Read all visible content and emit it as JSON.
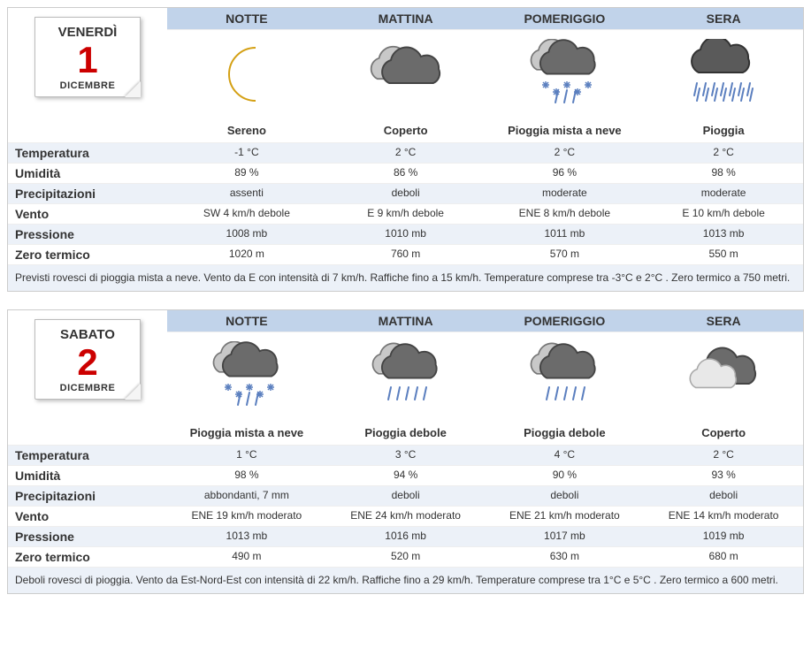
{
  "colors": {
    "header_bg": "#c1d3ea",
    "alt_row_bg": "#ecf1f8",
    "daynum": "#cc0000",
    "border": "#cccccc"
  },
  "period_labels": [
    "NOTTE",
    "MATTINA",
    "POMERIGGIO",
    "SERA"
  ],
  "row_labels": {
    "temperatura": "Temperatura",
    "umidita": "Umidità",
    "precipitazioni": "Precipitazioni",
    "vento": "Vento",
    "pressione": "Pressione",
    "zero_termico": "Zero termico"
  },
  "days": [
    {
      "dayname": "Venerdì",
      "daynum": "1",
      "month": "DICEMBRE",
      "periods": [
        {
          "icon": "clear-moon",
          "desc": "Sereno",
          "temperatura": "-1 °C",
          "umidita": "89 %",
          "precipitazioni": "assenti",
          "vento": "SW 4 km/h debole",
          "pressione": "1008 mb",
          "zero_termico": "1020 m"
        },
        {
          "icon": "overcast",
          "desc": "Coperto",
          "temperatura": "2 °C",
          "umidita": "86 %",
          "precipitazioni": "deboli",
          "vento": "E 9 km/h debole",
          "pressione": "1010 mb",
          "zero_termico": "760 m"
        },
        {
          "icon": "rain-snow",
          "desc": "Pioggia mista a neve",
          "temperatura": "2 °C",
          "umidita": "96 %",
          "precipitazioni": "moderate",
          "vento": "ENE 8 km/h debole",
          "pressione": "1011 mb",
          "zero_termico": "570 m"
        },
        {
          "icon": "rain",
          "desc": "Pioggia",
          "temperatura": "2 °C",
          "umidita": "98 %",
          "precipitazioni": "moderate",
          "vento": "E 10 km/h debole",
          "pressione": "1013 mb",
          "zero_termico": "550 m"
        }
      ],
      "summary": "Previsti rovesci di pioggia mista a neve. Vento da E con intensità di 7 km/h. Raffiche fino a 15 km/h. Temperature comprese tra -3°C e 2°C . Zero termico a  750 metri."
    },
    {
      "dayname": "Sabato",
      "daynum": "2",
      "month": "DICEMBRE",
      "periods": [
        {
          "icon": "rain-snow",
          "desc": "Pioggia mista a neve",
          "temperatura": "1 °C",
          "umidita": "98 %",
          "precipitazioni": "abbondanti, 7 mm",
          "vento": "ENE 19 km/h moderato",
          "pressione": "1013 mb",
          "zero_termico": "490 m"
        },
        {
          "icon": "light-rain",
          "desc": "Pioggia debole",
          "temperatura": "3 °C",
          "umidita": "94 %",
          "precipitazioni": "deboli",
          "vento": "ENE 24 km/h moderato",
          "pressione": "1016 mb",
          "zero_termico": "520 m"
        },
        {
          "icon": "light-rain",
          "desc": "Pioggia debole",
          "temperatura": "4 °C",
          "umidita": "90 %",
          "precipitazioni": "deboli",
          "vento": "ENE 21 km/h moderato",
          "pressione": "1017 mb",
          "zero_termico": "630 m"
        },
        {
          "icon": "partly-cloudy",
          "desc": "Coperto",
          "temperatura": "2 °C",
          "umidita": "93 %",
          "precipitazioni": "deboli",
          "vento": "ENE 14 km/h moderato",
          "pressione": "1019 mb",
          "zero_termico": "680 m"
        }
      ],
      "summary": "Deboli rovesci di pioggia. Vento da Est-Nord-Est con intensità di 22 km/h. Raffiche fino a 29 km/h. Temperature comprese tra 1°C e 5°C . Zero termico a  600 metri."
    }
  ]
}
